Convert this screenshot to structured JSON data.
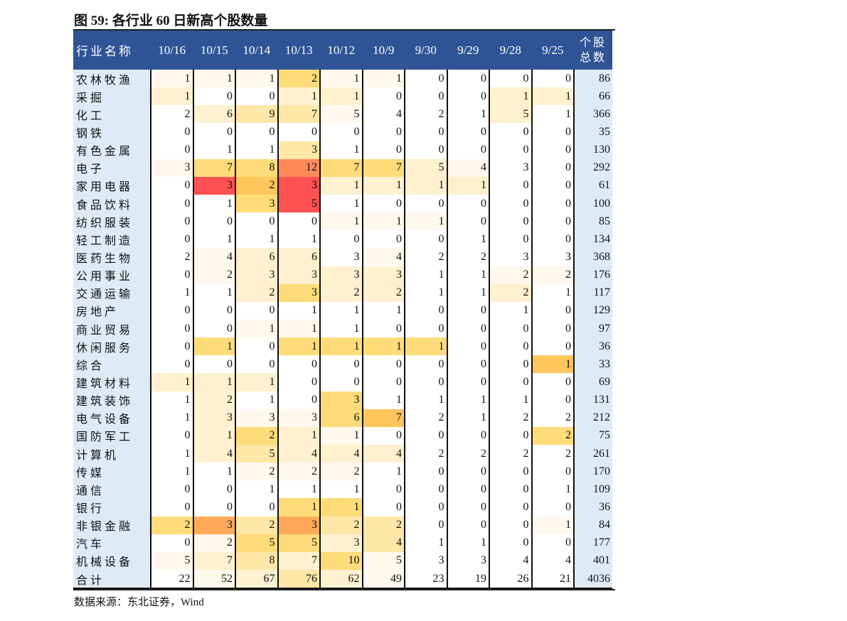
{
  "title": "图 59: 各行业 60 日新高个股数量",
  "source": "数据来源：东北证券，Wind",
  "header": {
    "label": "行业名称",
    "dates": [
      "10/16",
      "10/15",
      "10/14",
      "10/13",
      "10/12",
      "10/9",
      "9/30",
      "9/29",
      "9/28",
      "9/25"
    ],
    "total_line1": "个股",
    "total_line2": "总数"
  },
  "palette": {
    "w": "#ffffff",
    "a": "#fff8ec",
    "b": "#fff1cf",
    "c": "#ffe7a8",
    "d": "#ffdc7a",
    "e": "#ffc65c",
    "f": "#ffaa5a",
    "g": "#ff8a58",
    "r": "#ff5151"
  },
  "rows": [
    {
      "name": "农林牧渔",
      "values": [
        1,
        1,
        1,
        2,
        1,
        1,
        0,
        0,
        0,
        0
      ],
      "total": 86,
      "colors": "aaadaawwww"
    },
    {
      "name": "采掘",
      "values": [
        1,
        0,
        0,
        1,
        1,
        0,
        0,
        0,
        1,
        1
      ],
      "total": 66,
      "colors": "bwwbbwwwbb"
    },
    {
      "name": "化工",
      "values": [
        2,
        6,
        9,
        7,
        5,
        4,
        2,
        1,
        5,
        1
      ],
      "total": 366,
      "colors": "wbccawwwbw"
    },
    {
      "name": "钢铁",
      "values": [
        0,
        0,
        0,
        0,
        0,
        0,
        0,
        0,
        0,
        0
      ],
      "total": 35,
      "colors": "wwwwwwwwww"
    },
    {
      "name": "有色金属",
      "values": [
        0,
        1,
        1,
        3,
        1,
        0,
        0,
        0,
        0,
        0
      ],
      "total": 130,
      "colors": "wwwcwwwwww"
    },
    {
      "name": "电子",
      "values": [
        3,
        7,
        8,
        12,
        7,
        7,
        5,
        4,
        3,
        0
      ],
      "total": 292,
      "colors": "addgddbaww"
    },
    {
      "name": "家用电器",
      "values": [
        0,
        3,
        2,
        3,
        1,
        1,
        1,
        1,
        0,
        0
      ],
      "total": 61,
      "colors": "wrerbbbbww"
    },
    {
      "name": "食品饮料",
      "values": [
        0,
        1,
        3,
        5,
        1,
        0,
        0,
        0,
        0,
        0
      ],
      "total": 100,
      "colors": "wwdrwwwwww"
    },
    {
      "name": "纺织服装",
      "values": [
        0,
        0,
        0,
        0,
        1,
        1,
        1,
        0,
        0,
        0
      ],
      "total": 85,
      "colors": "wwwwaaawww"
    },
    {
      "name": "轻工制造",
      "values": [
        0,
        1,
        1,
        1,
        0,
        0,
        0,
        1,
        0,
        0
      ],
      "total": 134,
      "colors": "wwwwwwwwww"
    },
    {
      "name": "医药生物",
      "values": [
        2,
        4,
        6,
        6,
        3,
        4,
        2,
        2,
        3,
        3
      ],
      "total": 368,
      "colors": "wabbwawwww"
    },
    {
      "name": "公用事业",
      "values": [
        0,
        2,
        3,
        3,
        3,
        3,
        1,
        1,
        2,
        2
      ],
      "total": 176,
      "colors": "wabbbbwwaa"
    },
    {
      "name": "交通运输",
      "values": [
        1,
        1,
        2,
        3,
        2,
        2,
        1,
        1,
        2,
        1
      ],
      "total": 117,
      "colors": "wwbdbbwwbw"
    },
    {
      "name": "房地产",
      "values": [
        0,
        0,
        0,
        1,
        1,
        1,
        0,
        0,
        1,
        0
      ],
      "total": 129,
      "colors": "wwwwwwwwww"
    },
    {
      "name": "商业贸易",
      "values": [
        0,
        0,
        1,
        1,
        1,
        0,
        0,
        0,
        0,
        0
      ],
      "total": 97,
      "colors": "wwaawwwwww"
    },
    {
      "name": "休闲服务",
      "values": [
        0,
        1,
        0,
        1,
        1,
        1,
        1,
        0,
        0,
        0
      ],
      "total": 36,
      "colors": "wdwddddwww"
    },
    {
      "name": "综合",
      "values": [
        0,
        0,
        0,
        0,
        0,
        0,
        0,
        0,
        0,
        1
      ],
      "total": 33,
      "colors": "wwwwwwwwwe"
    },
    {
      "name": "建筑材料",
      "values": [
        1,
        1,
        1,
        0,
        0,
        0,
        0,
        0,
        0,
        0
      ],
      "total": 69,
      "colors": "bbbwwwwwww"
    },
    {
      "name": "建筑装饰",
      "values": [
        1,
        2,
        1,
        0,
        3,
        1,
        1,
        1,
        1,
        0
      ],
      "total": 131,
      "colors": "wbwwdwwwww"
    },
    {
      "name": "电气设备",
      "values": [
        1,
        3,
        3,
        3,
        6,
        7,
        2,
        1,
        2,
        2
      ],
      "total": 212,
      "colors": "wbaadewwww"
    },
    {
      "name": "国防军工",
      "values": [
        0,
        1,
        2,
        1,
        1,
        0,
        0,
        0,
        0,
        2
      ],
      "total": 75,
      "colors": "wbdbawwwwd"
    },
    {
      "name": "计算机",
      "values": [
        1,
        4,
        5,
        4,
        4,
        4,
        2,
        2,
        2,
        2
      ],
      "total": 261,
      "colors": "wbcbbbwwww"
    },
    {
      "name": "传媒",
      "values": [
        1,
        1,
        2,
        2,
        2,
        1,
        0,
        0,
        0,
        0
      ],
      "total": 170,
      "colors": "wwaaawwwww"
    },
    {
      "name": "通信",
      "values": [
        0,
        0,
        1,
        1,
        1,
        0,
        0,
        0,
        0,
        1
      ],
      "total": 109,
      "colors": "wwwwwwwwww"
    },
    {
      "name": "银行",
      "values": [
        0,
        0,
        0,
        1,
        1,
        0,
        0,
        0,
        0,
        0
      ],
      "total": 36,
      "colors": "wwwddwwwww"
    },
    {
      "name": "非银金融",
      "values": [
        2,
        3,
        2,
        3,
        2,
        2,
        0,
        0,
        0,
        1
      ],
      "total": 84,
      "colors": "dfcfccwwwa"
    },
    {
      "name": "汽车",
      "values": [
        0,
        2,
        5,
        5,
        3,
        4,
        1,
        1,
        0,
        0
      ],
      "total": 177,
      "colors": "waddbcwwww"
    },
    {
      "name": "机械设备",
      "values": [
        5,
        7,
        8,
        7,
        10,
        5,
        3,
        3,
        4,
        4
      ],
      "total": 401,
      "colors": "abcbdawwww"
    },
    {
      "name": "合计",
      "values": [
        22,
        52,
        67,
        76,
        62,
        49,
        23,
        19,
        26,
        21
      ],
      "total": 4036,
      "colors": "wabcbawwww"
    }
  ]
}
